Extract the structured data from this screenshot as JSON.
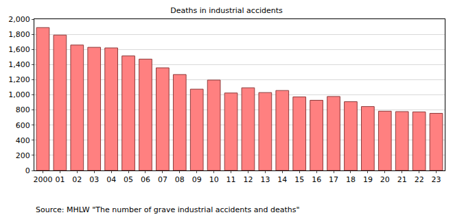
{
  "chart_data": {
    "type": "bar",
    "title": "Deaths in industrial accidents",
    "source": "Source: MHLW \"The number of grave industrial accidents and deaths\"",
    "categories": [
      "2000",
      "01",
      "02",
      "03",
      "04",
      "05",
      "06",
      "07",
      "08",
      "09",
      "10",
      "11",
      "12",
      "13",
      "14",
      "15",
      "16",
      "17",
      "18",
      "19",
      "20",
      "21",
      "22",
      "23"
    ],
    "values": [
      1889,
      1790,
      1658,
      1628,
      1620,
      1514,
      1472,
      1357,
      1268,
      1075,
      1195,
      1024,
      1093,
      1030,
      1057,
      972,
      928,
      978,
      909,
      845,
      784,
      778,
      774,
      755
    ],
    "color": "#ff8080",
    "ylim": [
      0,
      2000
    ],
    "yticks": [
      0,
      200,
      400,
      600,
      800,
      {
        "value": 1000,
        "label": "1,000"
      },
      {
        "value": 1200,
        "label": "1,200"
      },
      {
        "value": 1400,
        "label": "1,400"
      },
      {
        "value": 1600,
        "label": "1,600"
      },
      {
        "value": 1800,
        "label": "1,800"
      },
      {
        "value": 2000,
        "label": "2,000"
      }
    ],
    "grid": true
  }
}
